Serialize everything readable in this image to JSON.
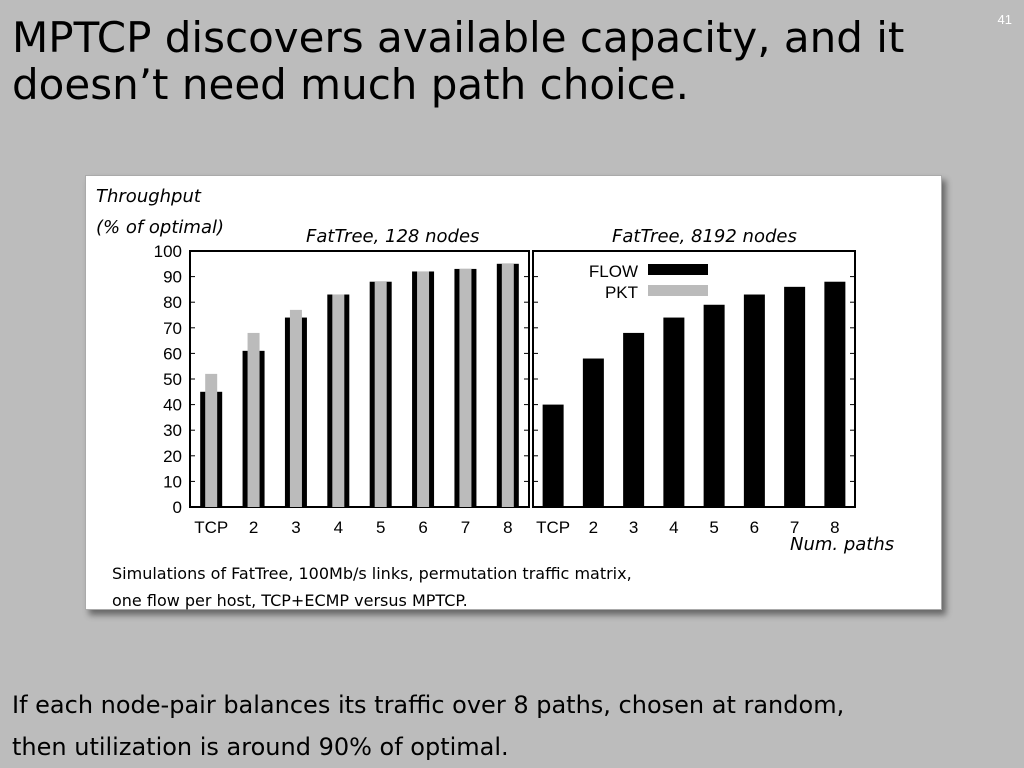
{
  "slide": {
    "number": "41",
    "title": "MPTCP discovers available capacity, and it doesn’t need much path choice.",
    "footer_line1": "If each node-pair balances its traffic over 8 paths, chosen at random,",
    "footer_line2": "then utilization is around 90% of optimal."
  },
  "figure": {
    "caption_line1": "Simulations of FatTree, 100Mb/s links, permutation traffic matrix,",
    "caption_line2": "one flow per host, TCP+ECMP versus MPTCP."
  },
  "chart_data": [
    {
      "type": "bar",
      "title": "FatTree, 128 nodes",
      "ylabel_line1": "Throughput",
      "ylabel_line2": "(% of optimal)",
      "xlabel": "",
      "ylim": [
        0,
        100
      ],
      "yticks": [
        0,
        10,
        20,
        30,
        40,
        50,
        60,
        70,
        80,
        90,
        100
      ],
      "categories": [
        "TCP",
        "2",
        "3",
        "4",
        "5",
        "6",
        "7",
        "8"
      ],
      "series": [
        {
          "name": "FLOW",
          "color": "#000000",
          "values": [
            45,
            61,
            74,
            83,
            88,
            92,
            93,
            95
          ]
        },
        {
          "name": "PKT",
          "color": "#bbbbbb",
          "values": [
            52,
            68,
            77,
            83,
            88,
            92,
            93,
            95
          ]
        }
      ]
    },
    {
      "type": "bar",
      "title": "FatTree, 8192 nodes",
      "xlabel": "Num. paths",
      "ylim": [
        0,
        100
      ],
      "categories": [
        "TCP",
        "2",
        "3",
        "4",
        "5",
        "6",
        "7",
        "8"
      ],
      "legend": {
        "placement": "top-left",
        "entries": [
          "FLOW",
          "PKT"
        ]
      },
      "series": [
        {
          "name": "FLOW",
          "color": "#000000",
          "values": [
            40,
            58,
            68,
            74,
            79,
            83,
            86,
            88
          ]
        }
      ]
    }
  ]
}
